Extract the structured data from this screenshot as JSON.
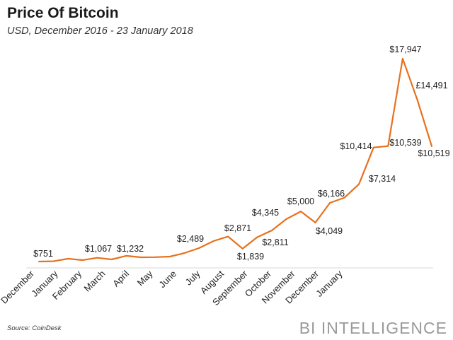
{
  "header": {
    "title": "Price Of Bitcoin",
    "subtitle": "USD, December 2016 - 23 January 2018"
  },
  "footer": {
    "source": "Source: CoinDesk",
    "brand": "BI INTELLIGENCE"
  },
  "chart_data": {
    "type": "line",
    "title": "Price Of Bitcoin",
    "subtitle": "USD, December 2016 - 23 January 2018",
    "xlabel": "",
    "ylabel": "",
    "ylim": [
      0,
      18500
    ],
    "grid": false,
    "legend": "none",
    "line_color": "#E8711C",
    "x_tick_labels": [
      "December",
      "January",
      "February",
      "March",
      "April",
      "May",
      "June",
      "July",
      "August",
      "September",
      "October",
      "November",
      "December",
      "January"
    ],
    "series": [
      {
        "values": [
          751,
          770,
          990,
          870,
          1067,
          930,
          1232,
          1110,
          1120,
          1170,
          1470,
          1890,
          2489,
          2871,
          1839,
          2811,
          3380,
          4345,
          5000,
          4049,
          5720,
          6166,
          7314,
          10414,
          10539,
          17947,
          14491,
          10519
        ]
      }
    ],
    "data_labels": [
      {
        "index": 0,
        "text": "$751"
      },
      {
        "index": 4,
        "text": "$1,067"
      },
      {
        "index": 6,
        "text": "$1,232"
      },
      {
        "index": 12,
        "text": "$2,489"
      },
      {
        "index": 13,
        "text": "$2,871"
      },
      {
        "index": 14,
        "text": "$1,839"
      },
      {
        "index": 15,
        "text": "$2,811"
      },
      {
        "index": 17,
        "text": "$4,345"
      },
      {
        "index": 18,
        "text": "$5,000"
      },
      {
        "index": 19,
        "text": "$4,049"
      },
      {
        "index": 21,
        "text": "$6,166"
      },
      {
        "index": 22,
        "text": "$7,314"
      },
      {
        "index": 23,
        "text": "$10,414"
      },
      {
        "index": 24,
        "text": "$10,539"
      },
      {
        "index": 25,
        "text": "$17,947"
      },
      {
        "index": 26,
        "text": "£14,491"
      },
      {
        "index": 27,
        "text": "$10,519"
      }
    ]
  }
}
